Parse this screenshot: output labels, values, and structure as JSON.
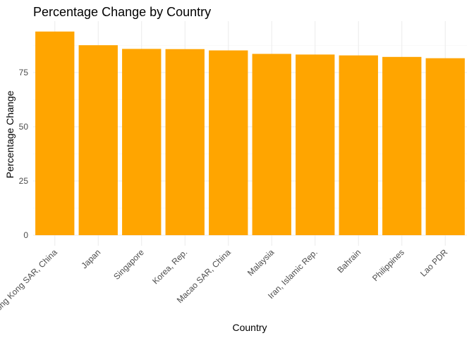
{
  "chart_data": {
    "type": "bar",
    "title": "Percentage Change by Country",
    "xlabel": "Country",
    "ylabel": "Percentage Change",
    "categories": [
      "Hong Kong SAR, China",
      "Japan",
      "Singapore",
      "Korea, Rep.",
      "Macao SAR, China",
      "Malaysia",
      "Iran, Islamic Rep.",
      "Bahrain",
      "Philippines",
      "Lao PDR"
    ],
    "values": [
      93.9,
      87.6,
      85.9,
      85.8,
      85.2,
      83.6,
      83.3,
      82.9,
      82.2,
      81.6
    ],
    "yticks": [
      0,
      25,
      50,
      75
    ],
    "ylim": [
      0,
      98.6
    ],
    "grid": true,
    "legend": "none",
    "bar_color": "#FFA500"
  }
}
